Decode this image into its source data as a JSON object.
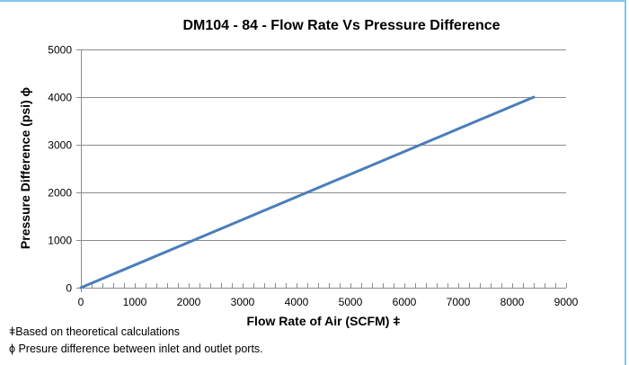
{
  "chart_data": {
    "type": "line",
    "title": "DM104 - 84  - Flow Rate Vs Pressure Difference",
    "xlabel": "Flow Rate  of Air (SCFM) ǂ",
    "ylabel": "Pressure Difference (psi) ϕ",
    "xlim": [
      0,
      9000
    ],
    "ylim": [
      0,
      5000
    ],
    "x_ticks": [
      0,
      1000,
      2000,
      3000,
      4000,
      5000,
      6000,
      7000,
      8000,
      9000
    ],
    "x_tick_labels": [
      "0",
      "1000",
      "2000",
      "3000",
      "4000",
      "5000",
      "6000",
      "7000",
      "8000",
      "9000"
    ],
    "x_minor_tick_step": 200,
    "y_ticks": [
      0,
      1000,
      2000,
      3000,
      4000,
      5000
    ],
    "y_tick_labels": [
      "0",
      "1000",
      "2000",
      "3000",
      "4000",
      "5000"
    ],
    "grid": "horizontal",
    "legend": "none",
    "series": [
      {
        "name": "Pressure Difference",
        "color": "#4a7ebb",
        "x": [
          0,
          8400
        ],
        "y": [
          0,
          4000
        ]
      }
    ]
  },
  "footnotes": [
    "ǂBased on theoretical calculations",
    "ϕ Presure difference between inlet and outlet ports."
  ],
  "colors": {
    "frame_border": "#7dc8ec",
    "gridline": "#8c8c8c",
    "axis": "#8c8c8c",
    "series": "#4a7ebb"
  }
}
